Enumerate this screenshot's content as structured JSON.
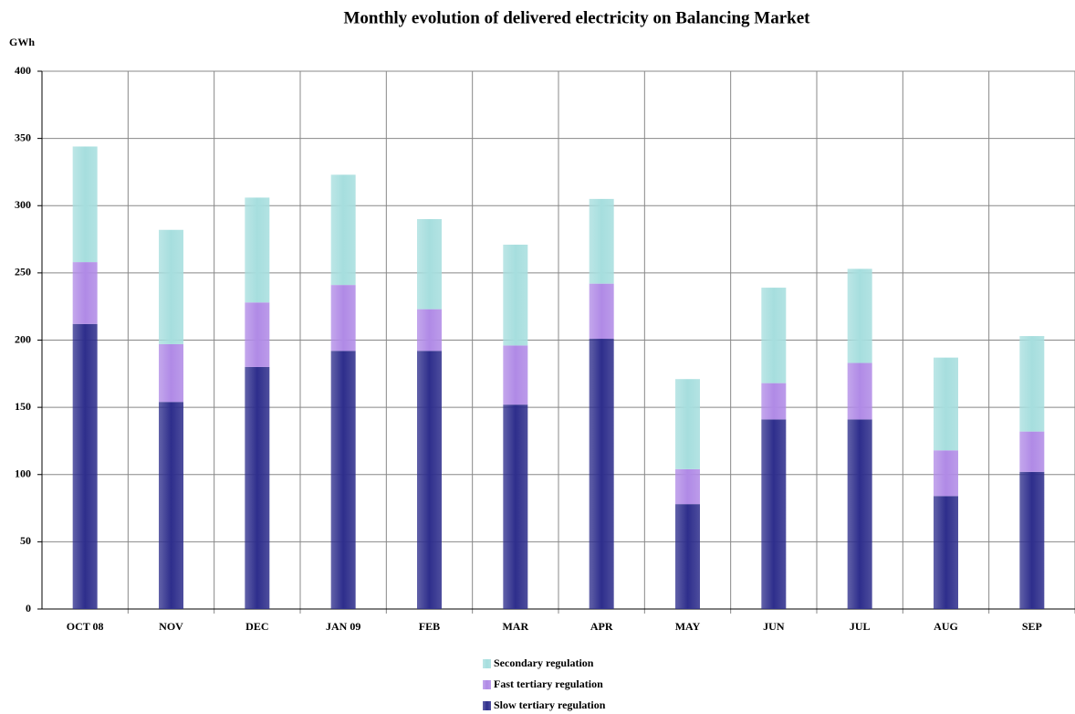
{
  "chart_data": {
    "type": "stacked_bar",
    "title": "Monthly evolution of delivered electricity on Balancing Market",
    "y_label": "GWh",
    "categories": [
      "OCT 08",
      "NOV",
      "DEC",
      "JAN 09",
      "FEB",
      "MAR",
      "APR",
      "MAY",
      "JUN",
      "JUL",
      "AUG",
      "SEP"
    ],
    "series": [
      {
        "name": "Slow tertiary regulation",
        "color": "#2e2e8c",
        "values": [
          212,
          154,
          180,
          192,
          192,
          152,
          201,
          78,
          141,
          141,
          84,
          102
        ]
      },
      {
        "name": "Fast tertiary regulation",
        "color": "#b08ae6",
        "values": [
          46,
          43,
          48,
          49,
          31,
          44,
          41,
          26,
          27,
          42,
          34,
          30
        ]
      },
      {
        "name": "Secondary regulation",
        "color": "#a6dede",
        "values": [
          86,
          85,
          78,
          82,
          67,
          75,
          63,
          67,
          71,
          70,
          69,
          71
        ]
      }
    ],
    "ylim": [
      0,
      400
    ],
    "yticks": [
      0,
      50,
      100,
      150,
      200,
      250,
      300,
      350,
      400
    ],
    "grid": true
  }
}
